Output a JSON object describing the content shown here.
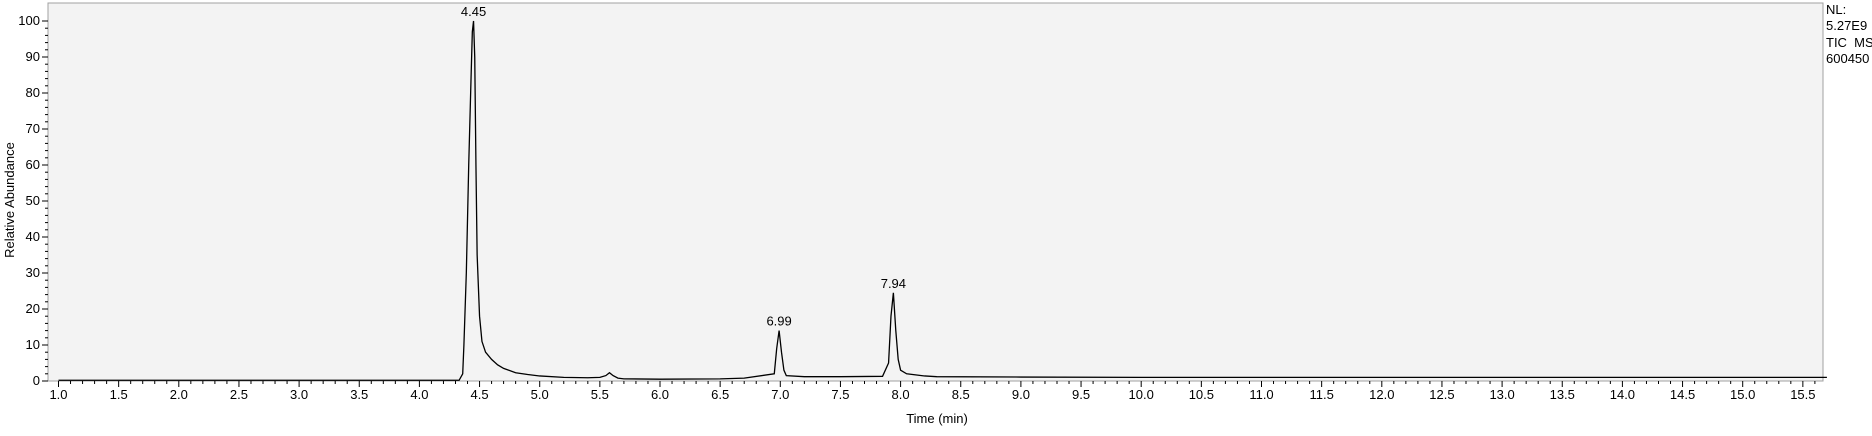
{
  "chart_data": {
    "type": "line",
    "xlabel": "Time (min)",
    "ylabel": "Relative Abundance",
    "xlim": [
      1.0,
      15.7
    ],
    "ylim": [
      0,
      100
    ],
    "x_ticks": [
      "1.0",
      "1.5",
      "2.0",
      "2.5",
      "3.0",
      "3.5",
      "4.0",
      "4.5",
      "5.0",
      "5.5",
      "6.0",
      "6.5",
      "7.0",
      "7.5",
      "8.0",
      "8.5",
      "9.0",
      "9.5",
      "10.0",
      "10.5",
      "11.0",
      "11.5",
      "12.0",
      "12.5",
      "13.0",
      "13.5",
      "14.0",
      "14.5",
      "15.0",
      "15.5"
    ],
    "y_ticks": [
      "0",
      "10",
      "20",
      "30",
      "40",
      "50",
      "60",
      "70",
      "80",
      "90",
      "100"
    ],
    "peak_labels": [
      {
        "x": 4.45,
        "y": 100,
        "text": "4.45"
      },
      {
        "x": 6.99,
        "y": 14,
        "text": "6.99"
      },
      {
        "x": 7.94,
        "y": 24.5,
        "text": "7.94"
      }
    ],
    "info_lines": [
      "NL:",
      "5.27E9",
      "TIC  MS",
      "600450"
    ],
    "series": [
      {
        "x": [
          1.0,
          4.33,
          4.36,
          4.37,
          4.39,
          4.41,
          4.43,
          4.44,
          4.45,
          4.46,
          4.47,
          4.48,
          4.5,
          4.52,
          4.55,
          4.6,
          4.65,
          4.7,
          4.8,
          4.9,
          5.0,
          5.2,
          5.4,
          5.5,
          5.55,
          5.58,
          5.61,
          5.65,
          5.7,
          6.0,
          6.5,
          6.7,
          6.95,
          6.97,
          6.99,
          7.01,
          7.03,
          7.05,
          7.2,
          7.5,
          7.85,
          7.9,
          7.92,
          7.94,
          7.96,
          7.98,
          8.0,
          8.05,
          8.2,
          8.3,
          9.0,
          10.0,
          12.0,
          14.0,
          15.7
        ],
        "y": [
          0.2,
          0.2,
          2,
          10,
          30,
          60,
          85,
          97,
          100,
          90,
          60,
          35,
          18,
          11,
          8,
          6,
          4.5,
          3.5,
          2.3,
          1.8,
          1.4,
          1.0,
          0.9,
          1.0,
          1.5,
          2.3,
          1.5,
          0.8,
          0.6,
          0.5,
          0.6,
          0.8,
          2,
          9,
          14,
          8,
          3,
          1.5,
          1.2,
          1.2,
          1.3,
          5,
          18,
          24.5,
          14,
          6,
          3,
          2,
          1.4,
          1.2,
          1.1,
          1.0,
          1.0,
          1.0,
          1.0
        ]
      }
    ]
  }
}
